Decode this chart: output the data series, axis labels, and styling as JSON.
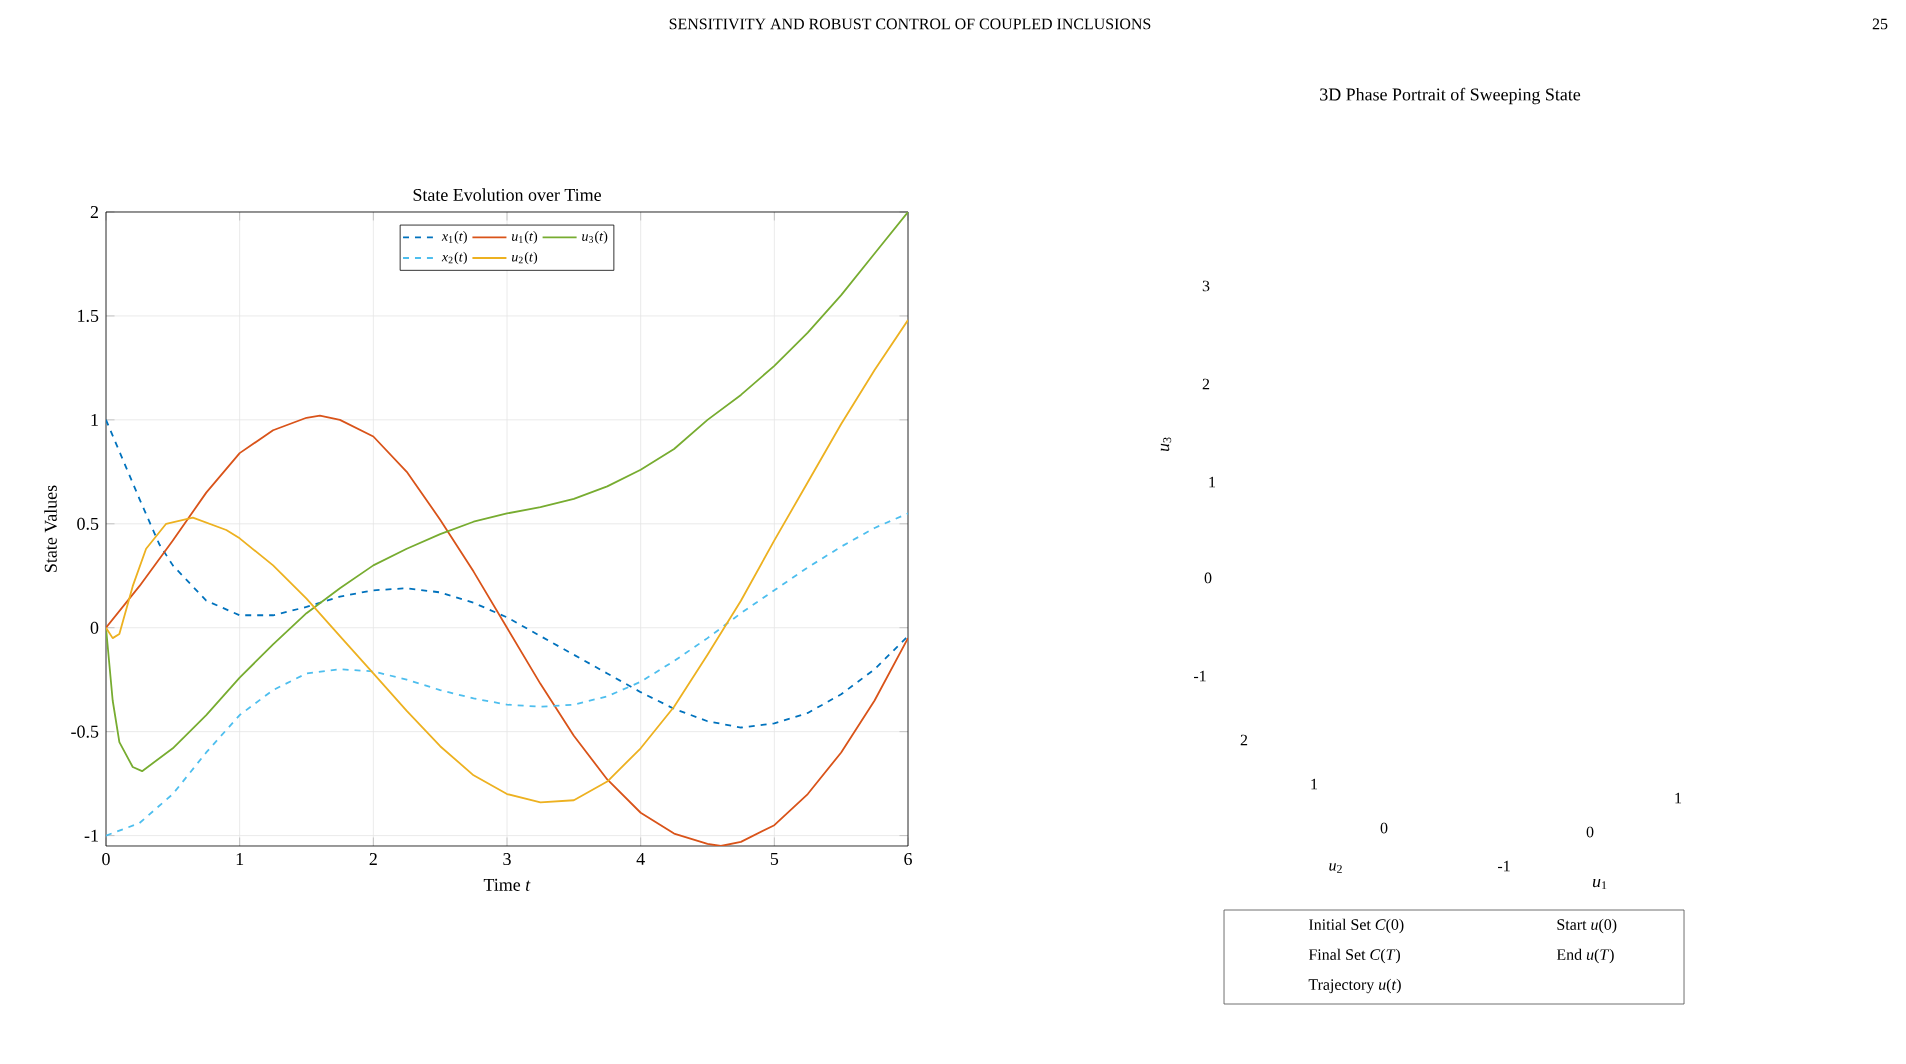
{
  "chart_data": [
    {
      "type": "line",
      "title": "State Evolution over Time",
      "xlabel": "Time *t*",
      "ylabel": "State Values",
      "annotations": [
        "SENSITIVITY AND ROBUST CONTROL OF COUPLED INCLUSIONS",
        "25"
      ],
      "xlim": [
        0,
        6
      ],
      "ylim": [
        -1.05,
        2
      ],
      "xticks": [
        0,
        1,
        2,
        3,
        4,
        5,
        6
      ],
      "yticks": [
        -1,
        -0.5,
        0,
        0.5,
        1,
        1.5,
        2
      ],
      "grid": true,
      "legend": "top",
      "marker": "none",
      "series": [
        {
          "name": "*x*$_{1}$(*t*)",
          "color": "#0072bd",
          "line_style": "dashed",
          "x": [
            0,
            0.25,
            0.4,
            0.5,
            0.75,
            1,
            1.25,
            1.5,
            1.75,
            2,
            2.25,
            2.5,
            2.75,
            3,
            3.25,
            3.5,
            3.75,
            4,
            4.25,
            4.5,
            4.75,
            5,
            5.25,
            5.5,
            5.75,
            6
          ],
          "values": [
            1.0,
            0.62,
            0.4,
            0.3,
            0.13,
            0.06,
            0.06,
            0.1,
            0.15,
            0.18,
            0.19,
            0.17,
            0.12,
            0.05,
            -0.04,
            -0.13,
            -0.22,
            -0.31,
            -0.39,
            -0.45,
            -0.48,
            -0.46,
            -0.41,
            -0.32,
            -0.2,
            -0.04
          ]
        },
        {
          "name": "*u*$_{1}$(*t*)",
          "color": "#d95319",
          "line_style": "solid",
          "x": [
            0,
            0.25,
            0.5,
            0.75,
            1,
            1.25,
            1.5,
            1.6,
            1.75,
            2,
            2.25,
            2.5,
            2.75,
            3,
            3.25,
            3.5,
            3.75,
            4,
            4.25,
            4.5,
            4.6,
            4.75,
            5,
            5.25,
            5.5,
            5.75,
            6
          ],
          "values": [
            0,
            0.2,
            0.42,
            0.65,
            0.84,
            0.95,
            1.01,
            1.02,
            1.0,
            0.92,
            0.75,
            0.52,
            0.27,
            0.0,
            -0.27,
            -0.52,
            -0.73,
            -0.89,
            -0.99,
            -1.04,
            -1.05,
            -1.03,
            -0.95,
            -0.8,
            -0.6,
            -0.35,
            -0.05
          ]
        },
        {
          "name": "*u*$_{3}$(*t*)",
          "color": "#77ac30",
          "line_style": "solid",
          "x": [
            0,
            0.05,
            0.1,
            0.2,
            0.27,
            0.5,
            0.75,
            1,
            1.25,
            1.5,
            1.75,
            2,
            2.25,
            2.5,
            2.75,
            3,
            3.25,
            3.5,
            3.75,
            4,
            4.25,
            4.5,
            4.75,
            5,
            5.25,
            5.5,
            5.75,
            6
          ],
          "values": [
            0,
            -0.35,
            -0.55,
            -0.67,
            -0.69,
            -0.58,
            -0.42,
            -0.24,
            -0.08,
            0.07,
            0.19,
            0.3,
            0.38,
            0.45,
            0.51,
            0.55,
            0.58,
            0.62,
            0.68,
            0.76,
            0.86,
            1.0,
            1.12,
            1.26,
            1.42,
            1.6,
            1.8,
            2.0
          ]
        },
        {
          "name": "*x*$_{2}$(*t*)",
          "color": "#4dbeee",
          "line_style": "dashed",
          "x": [
            0,
            0.25,
            0.5,
            0.75,
            1,
            1.25,
            1.5,
            1.75,
            2,
            2.25,
            2.5,
            2.75,
            3,
            3.25,
            3.5,
            3.75,
            4,
            4.25,
            4.5,
            4.75,
            5,
            5.25,
            5.5,
            5.75,
            6
          ],
          "values": [
            -1,
            -0.94,
            -0.8,
            -0.6,
            -0.42,
            -0.3,
            -0.22,
            -0.2,
            -0.21,
            -0.25,
            -0.3,
            -0.34,
            -0.37,
            -0.38,
            -0.37,
            -0.33,
            -0.26,
            -0.16,
            -0.05,
            0.07,
            0.18,
            0.29,
            0.39,
            0.48,
            0.55
          ]
        },
        {
          "name": "*u*$_{2}$(*t*)",
          "color": "#edb120",
          "line_style": "solid",
          "x": [
            0,
            0.05,
            0.1,
            0.2,
            0.3,
            0.45,
            0.65,
            0.9,
            1,
            1.25,
            1.5,
            1.75,
            2,
            2.25,
            2.5,
            2.75,
            3,
            3.25,
            3.5,
            3.75,
            4,
            4.25,
            4.5,
            4.75,
            5,
            5.25,
            5.5,
            5.75,
            6
          ],
          "values": [
            0,
            -0.05,
            -0.03,
            0.2,
            0.38,
            0.5,
            0.53,
            0.47,
            0.43,
            0.3,
            0.14,
            -0.04,
            -0.22,
            -0.4,
            -0.57,
            -0.71,
            -0.8,
            -0.84,
            -0.83,
            -0.74,
            -0.58,
            -0.38,
            -0.13,
            0.13,
            0.42,
            0.7,
            0.98,
            1.24,
            1.48
          ]
        }
      ]
    },
    {
      "type": "other",
      "title": "3D Phase Portrait of Sweeping State",
      "xlabel": "*u*$_{1}$",
      "ylabel": "*u*$_{3}$",
      "annotations": [
        "3",
        "2",
        "1",
        "0",
        "-1",
        "2",
        "1",
        "0",
        "*u*$_{2}$",
        "-1",
        "0",
        "1",
        "Initial Set *C*(0)",
        "Final Set *C*(*T*)",
        "Trajectory *u*(*t*)",
        "Start *u*(0)",
        "End *u*(*T*)"
      ]
    }
  ]
}
